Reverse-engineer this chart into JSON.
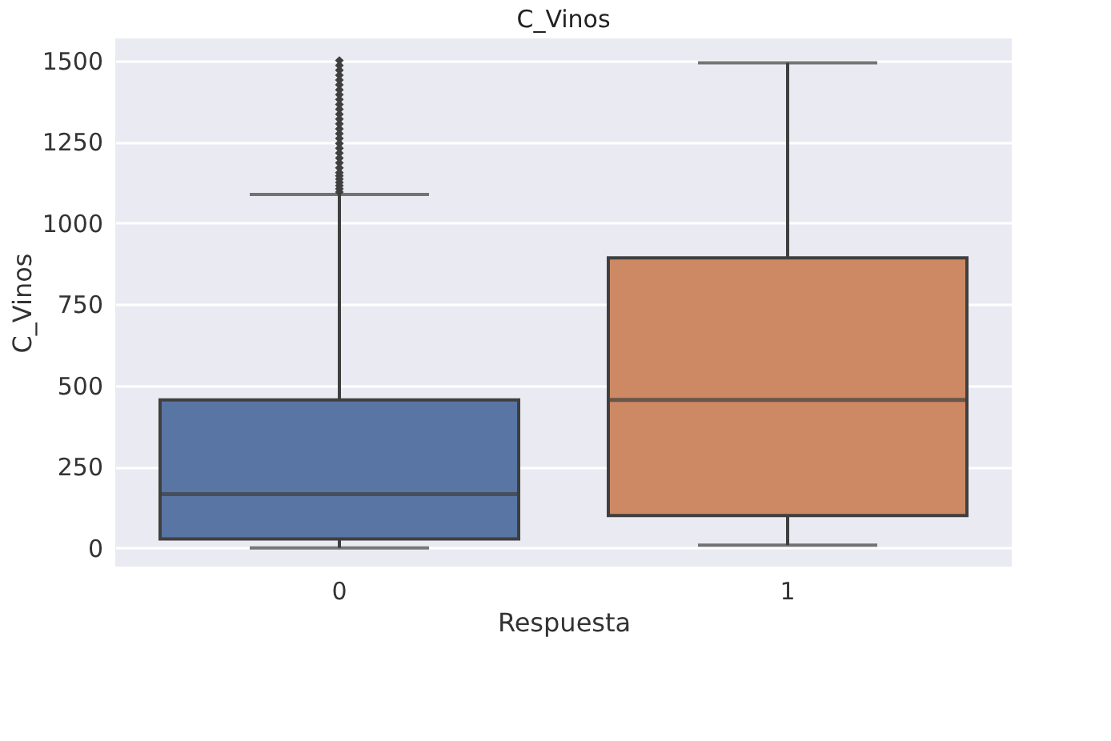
{
  "chart_data": {
    "type": "box",
    "title": "C_Vinos",
    "xlabel": "Respuesta",
    "ylabel": "C_Vinos",
    "categories": [
      "0",
      "1"
    ],
    "series": [
      {
        "colors": [
          "#5875a4",
          "#cc8963"
        ],
        "boxes": [
          {
            "low": 0,
            "q1": 28,
            "median": 166,
            "q3": 456,
            "high": 1088,
            "outliers": [
              1095,
              1105,
              1115,
              1125,
              1135,
              1145,
              1155,
              1170,
              1185,
              1200,
              1215,
              1230,
              1245,
              1260,
              1275,
              1290,
              1305,
              1320,
              1335,
              1350,
              1365,
              1380,
              1395,
              1410,
              1425,
              1440,
              1455,
              1470,
              1485,
              1500
            ]
          },
          {
            "low": 9,
            "q1": 100,
            "median": 456,
            "q3": 893,
            "high": 1493
          }
        ]
      }
    ],
    "ylim": [
      -57,
      1568
    ],
    "yticks": [
      0,
      250,
      500,
      750,
      1000,
      1250,
      1500
    ],
    "grid": "y",
    "marker": "diamond"
  }
}
